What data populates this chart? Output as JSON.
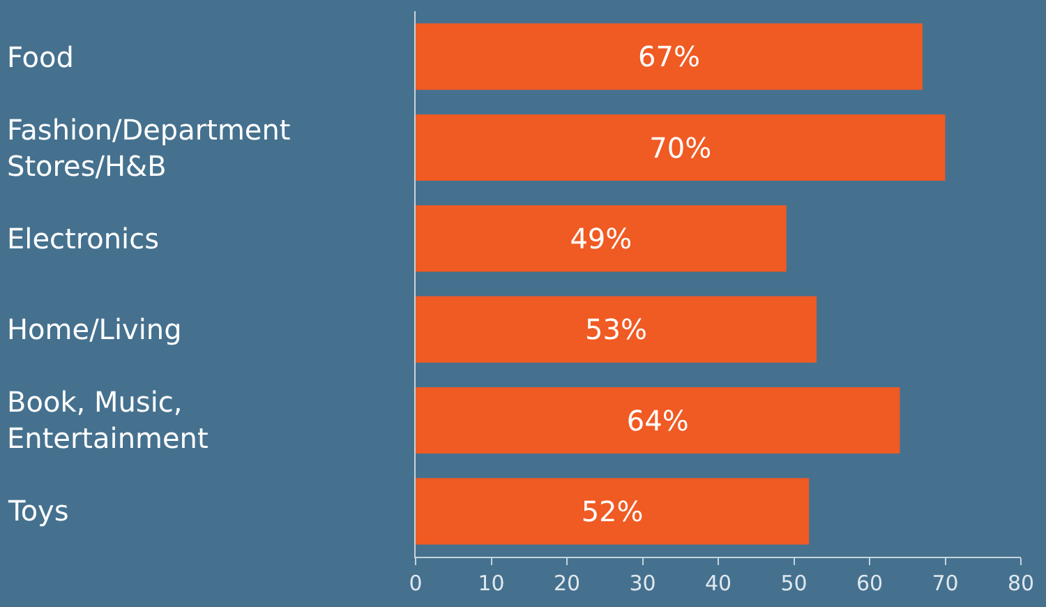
{
  "chart_data": {
    "type": "bar",
    "orientation": "horizontal",
    "categories": [
      "Food",
      "Fashion/Department\nStores/H&B",
      "Electronics",
      "Home/Living",
      "Book, Music,\nEntertainment",
      "Toys"
    ],
    "values": [
      67,
      70,
      49,
      53,
      64,
      52
    ],
    "value_labels": [
      "67%",
      "70%",
      "49%",
      "53%",
      "64%",
      "52%"
    ],
    "color": "#f05a23",
    "xlim": [
      0,
      80
    ],
    "xticks": [
      0,
      10,
      20,
      30,
      40,
      50,
      60,
      70,
      80
    ],
    "grid": false
  }
}
